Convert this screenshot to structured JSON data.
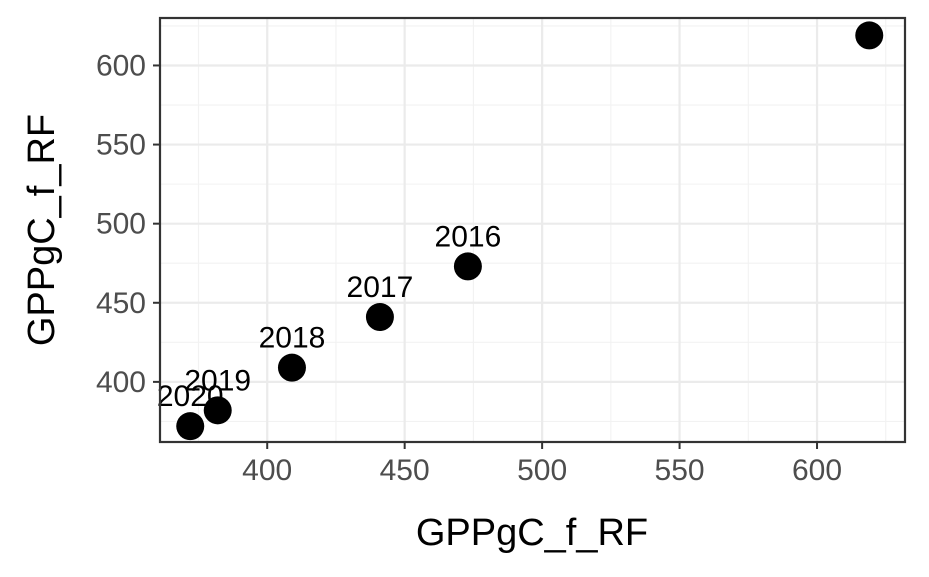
{
  "chart_data": {
    "type": "scatter",
    "xlabel": "GPPgC_f_RF",
    "ylabel": "GPPgC_f_RF",
    "xlim": [
      361,
      632
    ],
    "ylim": [
      362,
      630
    ],
    "x_ticks": [
      400,
      450,
      500,
      550,
      600
    ],
    "y_ticks": [
      400,
      450,
      500,
      550,
      600
    ],
    "x_minor_ticks": [
      375,
      425,
      475,
      525,
      575,
      625
    ],
    "y_minor_ticks": [
      375,
      425,
      475,
      525,
      575,
      625
    ],
    "grid": true,
    "marker_color": "#000000",
    "points": [
      {
        "label": "2016",
        "x": 473,
        "y": 473
      },
      {
        "label": "2017",
        "x": 441,
        "y": 441
      },
      {
        "label": "2018",
        "x": 409,
        "y": 409
      },
      {
        "label": "2019",
        "x": 382,
        "y": 382
      },
      {
        "label": "2020",
        "x": 372,
        "y": 372
      },
      {
        "label": "",
        "x": 619,
        "y": 619
      }
    ]
  }
}
